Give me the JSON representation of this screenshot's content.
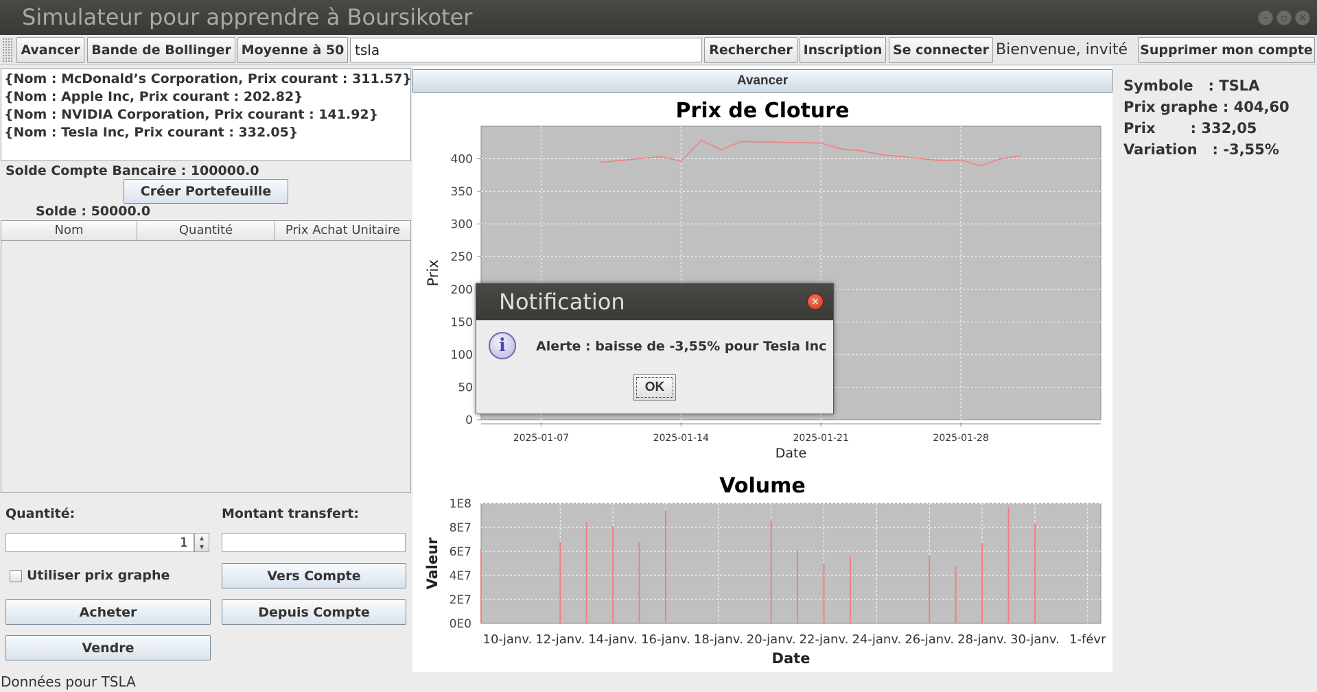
{
  "window": {
    "title": "Simulateur pour apprendre à Boursikoter"
  },
  "toolbar": {
    "avancer": "Avancer",
    "bollinger": "Bande de Bollinger",
    "moyenne": "Moyenne à 50",
    "search_value": "tsla",
    "rechercher": "Rechercher",
    "inscription": "Inscription",
    "connecter": "Se connecter",
    "welcome": "Bienvenue, invité",
    "supprimer": "Supprimer mon compte"
  },
  "stocks": [
    "{Nom : McDonald’s Corporation, Prix courant : 311.57}",
    "{Nom : Apple Inc, Prix courant : 202.82}",
    "{Nom : NVIDIA Corporation, Prix courant : 141.92}",
    "{Nom : Tesla Inc, Prix courant : 332.05}"
  ],
  "account": {
    "balance": "Solde Compte Bancaire : 100000.0",
    "create_portfolio": "Créer Portefeuille",
    "solde": "Solde : 50000.0"
  },
  "portfolio_table": {
    "columns": [
      "Nom",
      "Quantité",
      "Prix Achat Unitaire"
    ]
  },
  "trade": {
    "quantity_label": "Quantité:",
    "quantity_value": "1",
    "transfer_label": "Montant transfert:",
    "use_graph_price": "Utiliser prix graphe",
    "to_account": "Vers Compte",
    "from_account": "Depuis Compte",
    "buy": "Acheter",
    "sell": "Vendre"
  },
  "center": {
    "avancer": "Avancer"
  },
  "chart_data": [
    {
      "type": "line",
      "title": "Prix de Cloture",
      "xlabel": "Date",
      "ylabel": "Prix",
      "ylim": [
        0,
        450
      ],
      "yticks": [
        0,
        50,
        100,
        150,
        200,
        250,
        300,
        350,
        400
      ],
      "xticks": [
        "2025-01-07",
        "2025-01-14",
        "2025-01-21",
        "2025-01-28"
      ],
      "x": [
        "2025-01-10",
        "2025-01-13",
        "2025-01-14",
        "2025-01-15",
        "2025-01-16",
        "2025-01-17",
        "2025-01-21",
        "2025-01-22",
        "2025-01-23",
        "2025-01-24",
        "2025-01-27",
        "2025-01-28",
        "2025-01-29",
        "2025-01-30",
        "2025-01-31"
      ],
      "values": [
        394.7,
        403.3,
        396.4,
        428.2,
        413.8,
        426.5,
        424.1,
        415.1,
        412.4,
        406.6,
        397.2,
        398.1,
        389.1,
        400.3,
        404.6
      ],
      "series_color": "#f08080",
      "grid": true
    },
    {
      "type": "bar",
      "title": "Volume",
      "xlabel": "Date",
      "ylabel": "Valeur",
      "ylim": [
        0,
        100000000
      ],
      "yticks": [
        "0E0",
        "2E7",
        "4E7",
        "6E7",
        "8E7",
        "1E8"
      ],
      "xticks": [
        "10-janv.",
        "12-janv.",
        "14-janv.",
        "16-janv.",
        "18-janv.",
        "20-janv.",
        "22-janv.",
        "24-janv.",
        "26-janv.",
        "28-janv.",
        "30-janv.",
        "1-févr"
      ],
      "x": [
        "2025-01-10",
        "2025-01-13",
        "2025-01-14",
        "2025-01-15",
        "2025-01-16",
        "2025-01-17",
        "2025-01-21",
        "2025-01-22",
        "2025-01-23",
        "2025-01-24",
        "2025-01-27",
        "2025-01-28",
        "2025-01-29",
        "2025-01-30",
        "2025-01-31"
      ],
      "values": [
        62000000,
        68000000,
        84000000,
        81000000,
        68000000,
        94000000,
        86000000,
        61000000,
        50000000,
        56000000,
        57000000,
        48000000,
        67000000,
        97000000,
        83000000
      ],
      "series_color": "#f08080",
      "grid": true
    }
  ],
  "info": {
    "symbole": "Symbole   : TSLA",
    "prix_graphe": "Prix graphe : 404,60",
    "prix": "Prix       : 332,05",
    "variation": "Variation   : -3,55%"
  },
  "status": "Données pour TSLA",
  "notification": {
    "title": "Notification",
    "message": "Alerte : baisse de -3,55% pour Tesla Inc",
    "ok": "OK"
  }
}
